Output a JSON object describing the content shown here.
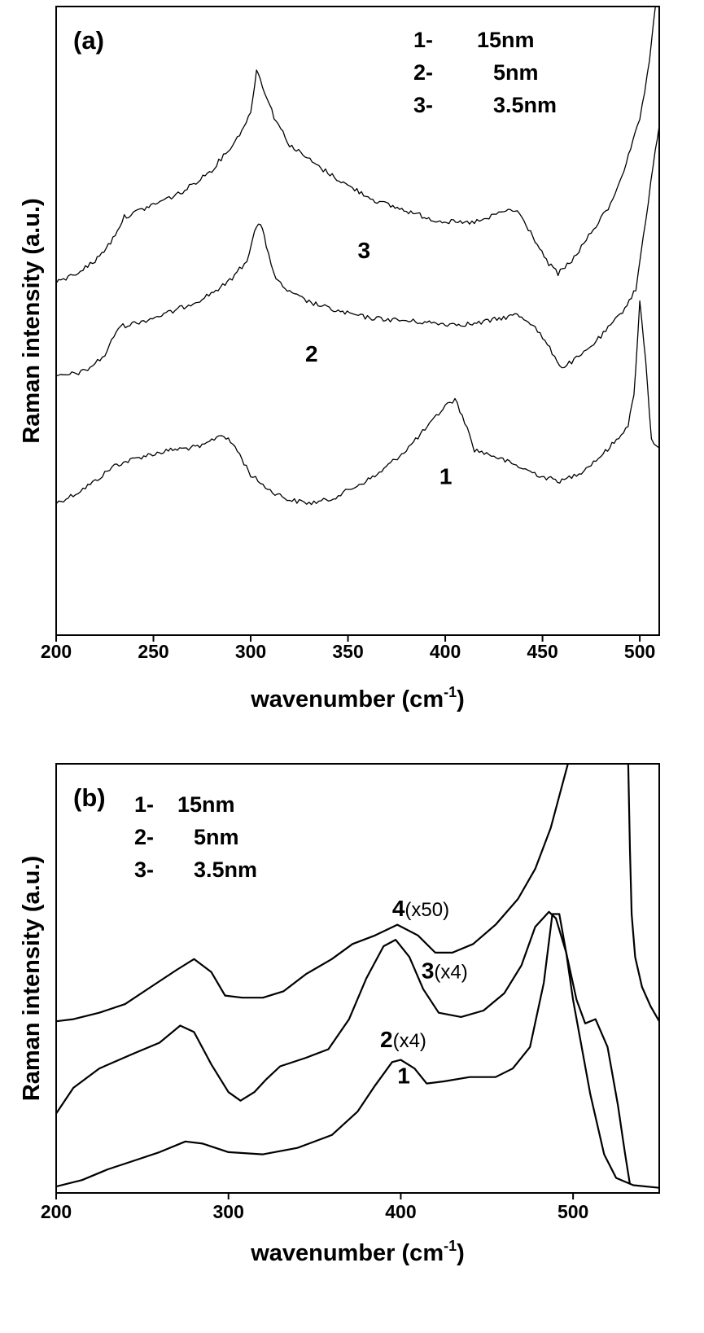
{
  "chart_data": [
    {
      "type": "line",
      "panel_label": "(a)",
      "xlabel": "wavenumber (cm",
      "xlabel_sup": "-1",
      "xlabel_end": ")",
      "ylabel": "Raman intensity (a.u.)",
      "xlim": [
        200,
        510
      ],
      "ylim": [
        0,
        10
      ],
      "xticks": [
        200,
        250,
        300,
        350,
        400,
        450,
        500
      ],
      "yticks": [],
      "grid": false,
      "legend": {
        "placement": "top-right",
        "entries": [
          {
            "num": "1-",
            "size": "15nm"
          },
          {
            "num": "2-",
            "size": "5nm"
          },
          {
            "num": "3-",
            "size": "3.5nm"
          }
        ]
      },
      "series": [
        {
          "name": "1",
          "label": "1",
          "label_at": [
            397,
            2.4
          ],
          "points": [
            [
              200,
              2.1
            ],
            [
              210,
              2.25
            ],
            [
              220,
              2.45
            ],
            [
              230,
              2.7
            ],
            [
              245,
              2.85
            ],
            [
              260,
              2.95
            ],
            [
              275,
              3.0
            ],
            [
              285,
              3.2
            ],
            [
              292,
              3.0
            ],
            [
              300,
              2.55
            ],
            [
              310,
              2.3
            ],
            [
              320,
              2.15
            ],
            [
              330,
              2.1
            ],
            [
              340,
              2.15
            ],
            [
              350,
              2.3
            ],
            [
              365,
              2.55
            ],
            [
              380,
              2.95
            ],
            [
              392,
              3.35
            ],
            [
              400,
              3.65
            ],
            [
              405,
              3.75
            ],
            [
              410,
              3.4
            ],
            [
              415,
              2.95
            ],
            [
              425,
              2.85
            ],
            [
              440,
              2.65
            ],
            [
              452,
              2.5
            ],
            [
              460,
              2.45
            ],
            [
              470,
              2.6
            ],
            [
              480,
              2.85
            ],
            [
              488,
              3.1
            ],
            [
              494,
              3.35
            ],
            [
              497,
              3.8
            ],
            [
              500,
              5.3
            ],
            [
              503,
              4.4
            ],
            [
              506,
              3.1
            ],
            [
              510,
              3.0
            ]
          ]
        },
        {
          "name": "2",
          "label": "2",
          "label_at": [
            328,
            4.35
          ],
          "points": [
            [
              200,
              4.1
            ],
            [
              215,
              4.2
            ],
            [
              225,
              4.45
            ],
            [
              232,
              4.9
            ],
            [
              245,
              5.0
            ],
            [
              260,
              5.15
            ],
            [
              275,
              5.35
            ],
            [
              288,
              5.6
            ],
            [
              298,
              5.95
            ],
            [
              302,
              6.45
            ],
            [
              305,
              6.55
            ],
            [
              308,
              6.2
            ],
            [
              313,
              5.65
            ],
            [
              320,
              5.45
            ],
            [
              330,
              5.3
            ],
            [
              345,
              5.15
            ],
            [
              360,
              5.05
            ],
            [
              380,
              5.0
            ],
            [
              400,
              4.95
            ],
            [
              415,
              4.95
            ],
            [
              430,
              5.05
            ],
            [
              437,
              5.1
            ],
            [
              445,
              4.95
            ],
            [
              455,
              4.5
            ],
            [
              460,
              4.25
            ],
            [
              470,
              4.45
            ],
            [
              480,
              4.75
            ],
            [
              490,
              5.1
            ],
            [
              498,
              5.5
            ],
            [
              503,
              6.6
            ],
            [
              507,
              7.5
            ],
            [
              510,
              8.1
            ]
          ]
        },
        {
          "name": "3",
          "label": "3",
          "label_at": [
            355,
            6.0
          ],
          "points": [
            [
              200,
              5.6
            ],
            [
              210,
              5.75
            ],
            [
              220,
              5.95
            ],
            [
              228,
              6.25
            ],
            [
              235,
              6.65
            ],
            [
              250,
              6.85
            ],
            [
              265,
              7.05
            ],
            [
              280,
              7.4
            ],
            [
              292,
              7.85
            ],
            [
              300,
              8.3
            ],
            [
              303,
              9.0
            ],
            [
              306,
              8.75
            ],
            [
              312,
              8.25
            ],
            [
              320,
              7.8
            ],
            [
              335,
              7.45
            ],
            [
              350,
              7.15
            ],
            [
              365,
              6.9
            ],
            [
              380,
              6.75
            ],
            [
              395,
              6.6
            ],
            [
              410,
              6.55
            ],
            [
              420,
              6.6
            ],
            [
              430,
              6.75
            ],
            [
              437,
              6.75
            ],
            [
              445,
              6.35
            ],
            [
              452,
              5.95
            ],
            [
              458,
              5.75
            ],
            [
              465,
              5.95
            ],
            [
              475,
              6.4
            ],
            [
              485,
              6.85
            ],
            [
              493,
              7.5
            ],
            [
              500,
              8.2
            ],
            [
              505,
              9.1
            ],
            [
              508,
              10.0
            ]
          ]
        }
      ]
    },
    {
      "type": "line",
      "panel_label": "(b)",
      "xlabel": "wavenumber (cm",
      "xlabel_sup": "-1",
      "xlabel_end": ")",
      "ylabel": "Raman intensity (a.u.)",
      "xlim": [
        200,
        550
      ],
      "ylim": [
        0,
        10
      ],
      "xticks": [
        200,
        300,
        400,
        500
      ],
      "yticks": [],
      "grid": false,
      "legend": {
        "placement": "top-left",
        "entries": [
          {
            "num": "1-",
            "size": "15nm"
          },
          {
            "num": "2-",
            "size": "5nm"
          },
          {
            "num": "3-",
            "size": "3.5nm"
          }
        ]
      },
      "series": [
        {
          "name": "1",
          "label": "1",
          "label_suffix": "",
          "label_at": [
            398,
            2.55
          ],
          "points": [
            [
              200,
              0.15
            ],
            [
              215,
              0.3
            ],
            [
              230,
              0.55
            ],
            [
              245,
              0.75
            ],
            [
              260,
              0.95
            ],
            [
              275,
              1.2
            ],
            [
              285,
              1.15
            ],
            [
              300,
              0.95
            ],
            [
              320,
              0.9
            ],
            [
              340,
              1.05
            ],
            [
              360,
              1.35
            ],
            [
              375,
              1.9
            ],
            [
              385,
              2.5
            ],
            [
              395,
              3.05
            ],
            [
              400,
              3.1
            ],
            [
              408,
              2.9
            ],
            [
              415,
              2.55
            ],
            [
              425,
              2.6
            ],
            [
              440,
              2.7
            ],
            [
              455,
              2.7
            ],
            [
              465,
              2.9
            ],
            [
              475,
              3.4
            ],
            [
              483,
              4.9
            ],
            [
              488,
              6.5
            ],
            [
              492,
              6.5
            ],
            [
              496,
              5.6
            ],
            [
              500,
              4.5
            ],
            [
              510,
              2.3
            ],
            [
              518,
              0.9
            ],
            [
              525,
              0.35
            ],
            [
              535,
              0.18
            ],
            [
              550,
              0.12
            ]
          ]
        },
        {
          "name": "2",
          "label": "2",
          "label_suffix": "(x4)",
          "label_at": [
            388,
            3.4
          ],
          "points": [
            [
              200,
              1.85
            ],
            [
              210,
              2.45
            ],
            [
              225,
              2.9
            ],
            [
              245,
              3.25
            ],
            [
              260,
              3.5
            ],
            [
              272,
              3.9
            ],
            [
              280,
              3.75
            ],
            [
              290,
              3.0
            ],
            [
              300,
              2.35
            ],
            [
              307,
              2.15
            ],
            [
              315,
              2.35
            ],
            [
              322,
              2.65
            ],
            [
              330,
              2.95
            ],
            [
              345,
              3.15
            ],
            [
              358,
              3.35
            ],
            [
              370,
              4.05
            ],
            [
              380,
              5.0
            ],
            [
              390,
              5.75
            ],
            [
              397,
              5.9
            ],
            [
              405,
              5.5
            ],
            [
              413,
              4.75
            ],
            [
              422,
              4.2
            ],
            [
              435,
              4.1
            ],
            [
              448,
              4.25
            ],
            [
              460,
              4.65
            ],
            [
              470,
              5.3
            ],
            [
              478,
              6.2
            ],
            [
              486,
              6.55
            ],
            [
              490,
              6.4
            ],
            [
              496,
              5.6
            ],
            [
              502,
              4.5
            ],
            [
              507,
              3.95
            ],
            [
              513,
              4.05
            ],
            [
              520,
              3.4
            ],
            [
              526,
              2.05
            ],
            [
              530,
              0.95
            ],
            [
              533,
              0.2
            ]
          ]
        },
        {
          "name": "3",
          "label": "3",
          "label_suffix": "(x4)",
          "label_at": [
            412,
            5.0
          ],
          "points": [
            [
              200,
              4.0
            ],
            [
              210,
              4.05
            ],
            [
              225,
              4.2
            ],
            [
              240,
              4.4
            ],
            [
              255,
              4.8
            ],
            [
              270,
              5.2
            ],
            [
              280,
              5.45
            ],
            [
              290,
              5.15
            ],
            [
              298,
              4.6
            ],
            [
              308,
              4.55
            ],
            [
              320,
              4.55
            ],
            [
              332,
              4.7
            ],
            [
              345,
              5.1
            ],
            [
              360,
              5.45
            ],
            [
              372,
              5.8
            ],
            [
              385,
              6.0
            ],
            [
              398,
              6.25
            ],
            [
              410,
              6.0
            ],
            [
              420,
              5.6
            ],
            [
              430,
              5.6
            ],
            [
              442,
              5.8
            ],
            [
              455,
              6.25
            ],
            [
              468,
              6.85
            ],
            [
              478,
              7.55
            ],
            [
              487,
              8.5
            ],
            [
              493,
              9.4
            ],
            [
              497,
              10.0
            ]
          ]
        },
        {
          "name": "4",
          "label": "4",
          "label_suffix": "(x50)",
          "label_at": [
            395,
            6.45
          ],
          "points": [
            [
              532,
              10.0
            ],
            [
              533,
              8.0
            ],
            [
              534,
              6.5
            ],
            [
              536,
              5.5
            ],
            [
              540,
              4.8
            ],
            [
              545,
              4.35
            ],
            [
              550,
              4.0
            ]
          ]
        }
      ]
    }
  ]
}
